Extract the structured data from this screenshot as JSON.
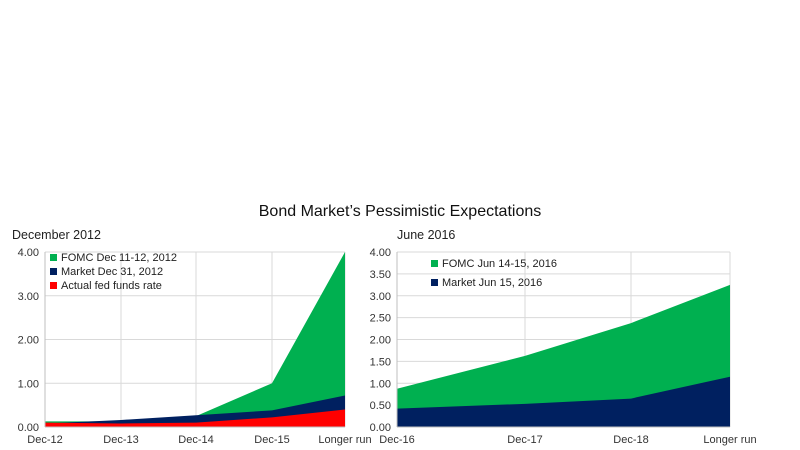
{
  "title": "Bond Market’s Pessimistic Expectations",
  "chart_data": [
    {
      "type": "area",
      "title": "December 2012",
      "categories": [
        "Dec-12",
        "Dec-13",
        "Dec-14",
        "Dec-15",
        "Longer run"
      ],
      "ylim": [
        0,
        4
      ],
      "yticks": [
        "0.00",
        "1.00",
        "2.00",
        "3.00",
        "4.00"
      ],
      "grid": true,
      "legend": "top-left",
      "series": [
        {
          "name": "FOMC Dec 11-12, 2012",
          "color": "#00b050",
          "values": [
            0.13,
            0.13,
            0.25,
            1.0,
            4.0
          ]
        },
        {
          "name": "Market Dec 31, 2012",
          "color": "#002060",
          "values": [
            0.08,
            0.16,
            0.27,
            0.38,
            0.72
          ]
        },
        {
          "name": "Actual fed funds rate",
          "color": "#ff0000",
          "values": [
            0.1,
            0.08,
            0.1,
            0.22,
            0.4
          ]
        }
      ]
    },
    {
      "type": "area",
      "title": "June 2016",
      "categories": [
        "Dec-16",
        "Dec-17",
        "Dec-18",
        "Longer run"
      ],
      "ylim": [
        0,
        4
      ],
      "yticks": [
        "0.00",
        "0.50",
        "1.00",
        "1.50",
        "2.00",
        "2.50",
        "3.00",
        "3.50",
        "4.00"
      ],
      "grid": true,
      "legend": "top-left",
      "series": [
        {
          "name": "FOMC Jun 14-15, 2016",
          "color": "#00b050",
          "values": [
            0.875,
            1.625,
            2.375,
            3.25
          ]
        },
        {
          "name": "Market Jun 15, 2016",
          "color": "#002060",
          "values": [
            0.42,
            0.53,
            0.65,
            1.15
          ]
        }
      ]
    }
  ]
}
